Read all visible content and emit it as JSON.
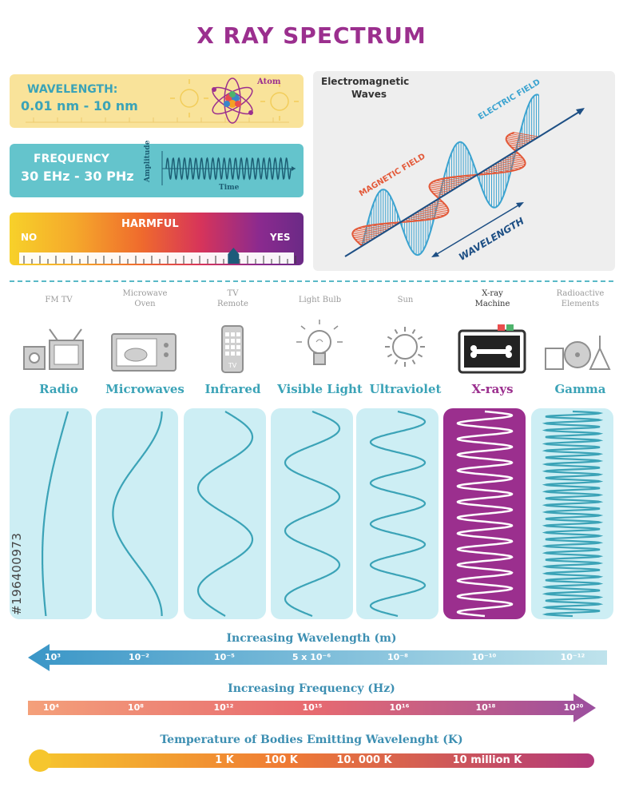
{
  "title": "X RAY SPECTRUM",
  "wavelength_card": {
    "label": "WAVELENGTH:",
    "value": "0.01 nm - 10 nm",
    "atom_label": "Atom"
  },
  "frequency_card": {
    "label": "FREQUENCY",
    "value": "30 EHz - 30 PHz",
    "amplitude_label": "Amplitude",
    "time_label": "Time"
  },
  "harmful_card": {
    "label": "HARMFUL",
    "no": "NO",
    "yes": "YES",
    "level": 0.78
  },
  "em_card": {
    "title_line1": "Electromagnetic",
    "title_line2": "Waves",
    "electric": "ELECTRIC FIELD",
    "magnetic": "MAGNETIC FIELD",
    "wavelength": "WAVELENGTH"
  },
  "bands": [
    {
      "source": [
        "FM  TV",
        ""
      ],
      "name": "Radio",
      "icon": "radio-tv-icon"
    },
    {
      "source": [
        "Microwave",
        "Oven"
      ],
      "name": "Microwaves",
      "icon": "microwave-oven-icon"
    },
    {
      "source": [
        "TV",
        "Remote"
      ],
      "name": "Infrared",
      "icon": "tv-remote-icon"
    },
    {
      "source": [
        "Light Bulb",
        ""
      ],
      "name": "Visible Light",
      "icon": "light-bulb-icon"
    },
    {
      "source": [
        "Sun",
        ""
      ],
      "name": "Ultraviolet",
      "icon": "sun-icon"
    },
    {
      "source": [
        "X-ray",
        "Machine"
      ],
      "name": "X-rays",
      "icon": "xray-machine-icon"
    },
    {
      "source": [
        "Radioactive",
        "Elements"
      ],
      "name": "Gamma",
      "icon": "radioactive-elements-icon"
    }
  ],
  "wavelength_axis": {
    "title": "Increasing Wavelength (m)",
    "ticks": [
      "10³",
      "10⁻²",
      "10⁻⁵",
      "5 x 10⁻⁶",
      "10⁻⁸",
      "10⁻¹⁰",
      "10⁻¹²"
    ]
  },
  "frequency_axis": {
    "title": "Increasing Frequency (Hz)",
    "ticks": [
      "10⁴",
      "10⁸",
      "10¹²",
      "10¹⁵",
      "10¹⁶",
      "10¹⁸",
      "10²⁰"
    ]
  },
  "temperature_axis": {
    "title": "Temperature of Bodies Emitting Wavelenght (K)",
    "ticks": [
      "1 K",
      "100 K",
      "10. 000 K",
      "10 million K"
    ]
  },
  "watermark": "#196400973",
  "colors": {
    "purple": "#9b2f8e",
    "teal": "#3ba3b7",
    "panel": "#cdeef4",
    "wave": "#3ba3b7",
    "yellow": "#f9e39a"
  }
}
